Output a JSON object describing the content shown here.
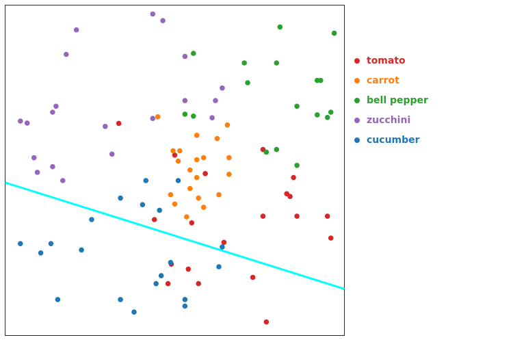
{
  "chart_data": {
    "type": "scatter",
    "title": "",
    "xlabel": "",
    "ylabel": "",
    "xlim": [
      0,
      100
    ],
    "ylim": [
      0,
      100
    ],
    "grid": false,
    "legend_position": "right",
    "series": [
      {
        "name": "tomato",
        "color": "#d62728",
        "points": [
          [
            33.5,
            64.2
          ],
          [
            50,
            54.6
          ],
          [
            59,
            49
          ],
          [
            44,
            35.1
          ],
          [
            55,
            34.1
          ],
          [
            64.5,
            28.2
          ],
          [
            76,
            56.3
          ],
          [
            85,
            47.8
          ],
          [
            84,
            42.1
          ],
          [
            83,
            42.9
          ],
          [
            76,
            36.1
          ],
          [
            86,
            36.1
          ],
          [
            95,
            36.1
          ],
          [
            96,
            29.5
          ],
          [
            49,
            21.6
          ],
          [
            54,
            20.1
          ],
          [
            73,
            17.6
          ],
          [
            48,
            15.7
          ],
          [
            57,
            15.7
          ],
          [
            77,
            4.1
          ]
        ]
      },
      {
        "name": "carrot",
        "color": "#ff7f0e",
        "points": [
          [
            45,
            66.2
          ],
          [
            65.5,
            63.7
          ],
          [
            56.5,
            60.6
          ],
          [
            62.5,
            59.6
          ],
          [
            49.5,
            55.9
          ],
          [
            51.5,
            55.9
          ],
          [
            51,
            52.8
          ],
          [
            56.5,
            53.2
          ],
          [
            58.5,
            53.8
          ],
          [
            66,
            53.8
          ],
          [
            54.5,
            50.1
          ],
          [
            56.5,
            47.8
          ],
          [
            66,
            48.8
          ],
          [
            54.5,
            44.5
          ],
          [
            48.8,
            42.6
          ],
          [
            57,
            41.6
          ],
          [
            63,
            42.6
          ],
          [
            50,
            39.8
          ],
          [
            58.5,
            38.8
          ],
          [
            53.5,
            35.9
          ]
        ]
      },
      {
        "name": "bell pepper",
        "color": "#2ca02c",
        "points": [
          [
            81,
            93.4
          ],
          [
            97,
            91.5
          ],
          [
            55.5,
            85.4
          ],
          [
            70.5,
            82.5
          ],
          [
            80,
            82.5
          ],
          [
            71.5,
            76.5
          ],
          [
            92,
            77.2
          ],
          [
            93,
            77.2
          ],
          [
            86,
            69.4
          ],
          [
            53,
            67
          ],
          [
            55.5,
            66.4
          ],
          [
            92,
            66.8
          ],
          [
            95,
            66
          ],
          [
            96,
            67.6
          ],
          [
            77,
            55.5
          ],
          [
            80,
            56.3
          ],
          [
            86,
            51.5
          ]
        ]
      },
      {
        "name": "zucchini",
        "color": "#9467bd",
        "points": [
          [
            43.5,
            97.3
          ],
          [
            46.5,
            95.3
          ],
          [
            21,
            92.5
          ],
          [
            18,
            85.1
          ],
          [
            53,
            84.5
          ],
          [
            64,
            74.9
          ],
          [
            53,
            71.1
          ],
          [
            62,
            71.1
          ],
          [
            15,
            69.4
          ],
          [
            14,
            67.6
          ],
          [
            61,
            65.9
          ],
          [
            43.5,
            65.7
          ],
          [
            4.5,
            64.9
          ],
          [
            6.5,
            64.3
          ],
          [
            29.5,
            63.3
          ],
          [
            31.5,
            54.9
          ],
          [
            8.5,
            53.8
          ],
          [
            14,
            51.1
          ],
          [
            9.5,
            49.4
          ],
          [
            17,
            46.9
          ]
        ]
      },
      {
        "name": "cucumber",
        "color": "#1f77b4",
        "points": [
          [
            41.5,
            46.9
          ],
          [
            51,
            46.9
          ],
          [
            34,
            41.6
          ],
          [
            40.5,
            39.6
          ],
          [
            45.5,
            37.9
          ],
          [
            25.5,
            35.1
          ],
          [
            64,
            26.8
          ],
          [
            4.5,
            27.8
          ],
          [
            13.5,
            27.8
          ],
          [
            10.5,
            25
          ],
          [
            22.5,
            25.9
          ],
          [
            48.8,
            22.1
          ],
          [
            63,
            20.8
          ],
          [
            46,
            18.1
          ],
          [
            44.5,
            15.7
          ],
          [
            15.5,
            10.9
          ],
          [
            34,
            10.9
          ],
          [
            53,
            10.9
          ],
          [
            53,
            8.9
          ],
          [
            38,
            7.1
          ]
        ]
      }
    ],
    "decision_line": {
      "color": "#00ffff",
      "points": [
        [
          0,
          46.3
        ],
        [
          100,
          14.1
        ]
      ]
    }
  }
}
